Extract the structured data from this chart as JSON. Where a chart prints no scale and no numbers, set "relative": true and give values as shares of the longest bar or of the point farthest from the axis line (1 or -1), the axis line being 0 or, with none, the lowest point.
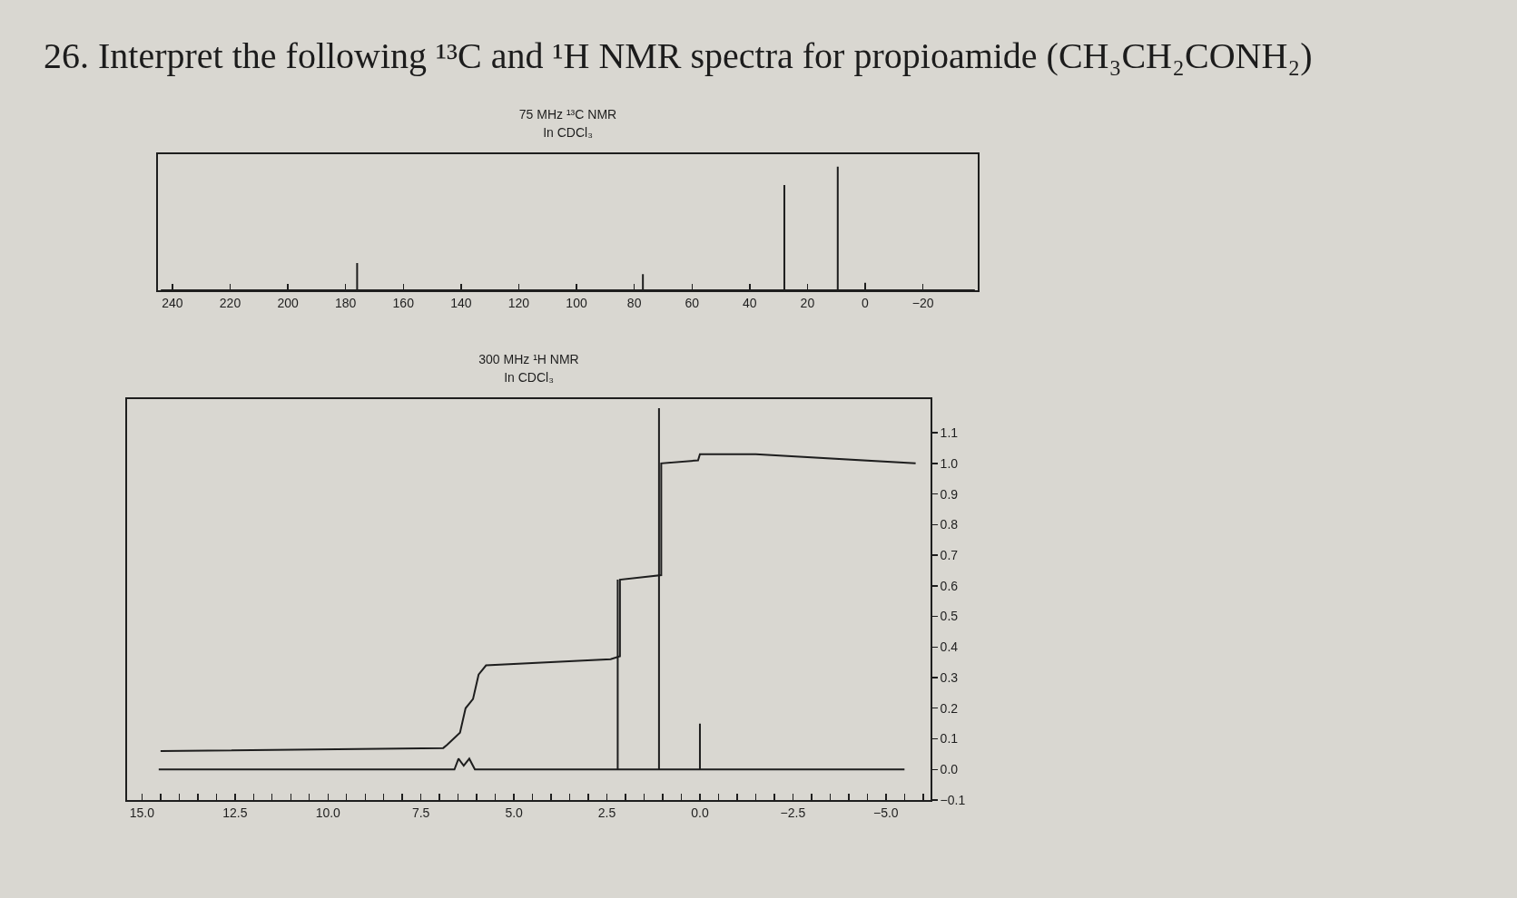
{
  "chart_data": [
    {
      "type": "other",
      "title": "26. Interpret the following ¹³C and ¹H NMR spectra for propioamide (CH₃CH₂CONH₂)"
    },
    {
      "type": "line",
      "title": "75 MHz ¹³C NMR",
      "subtitle": "In CDCl₃",
      "relative": true,
      "xlim": [
        245,
        -39
      ],
      "xticks": [
        240,
        220,
        200,
        180,
        160,
        140,
        120,
        100,
        80,
        60,
        40,
        20,
        0,
        {
          "value": -20,
          "label": "−20"
        }
      ],
      "series": [
        {
          "color": "#1e1e1e",
          "x": [
            244,
            176,
            176,
            176,
            77,
            77,
            77,
            28,
            28,
            28,
            9.5,
            9.5,
            9.5,
            0,
            0,
            0,
            -38
          ],
          "values": [
            0,
            0,
            0.22,
            0,
            0,
            0.13,
            0,
            0,
            0.85,
            0,
            0,
            1,
            0,
            0,
            0.06,
            0,
            0
          ]
        }
      ]
    },
    {
      "type": "line",
      "title": "300 MHz ¹H NMR",
      "subtitle": "In CDCl₃",
      "xlim": [
        15.4,
        -6.2
      ],
      "ylim": [
        -0.1,
        1.21
      ],
      "xticks": [
        {
          "value": 15,
          "label": "15.0"
        },
        {
          "value": 14.5,
          "label": null
        },
        {
          "value": 14,
          "label": null
        },
        {
          "value": 13.5,
          "label": null
        },
        {
          "value": 13,
          "label": null
        },
        {
          "value": 12.5,
          "label": "12.5"
        },
        {
          "value": 12,
          "label": null
        },
        {
          "value": 11.5,
          "label": null
        },
        {
          "value": 11,
          "label": null
        },
        {
          "value": 10.5,
          "label": null
        },
        {
          "value": 10,
          "label": "10.0"
        },
        {
          "value": 9.5,
          "label": null
        },
        {
          "value": 9,
          "label": null
        },
        {
          "value": 8.5,
          "label": null
        },
        {
          "value": 8,
          "label": null
        },
        {
          "value": 7.5,
          "label": "7.5"
        },
        {
          "value": 7,
          "label": null
        },
        {
          "value": 6.5,
          "label": null
        },
        {
          "value": 6,
          "label": null
        },
        {
          "value": 5.5,
          "label": null
        },
        {
          "value": 5,
          "label": "5.0"
        },
        {
          "value": 4.5,
          "label": null
        },
        {
          "value": 4,
          "label": null
        },
        {
          "value": 3.5,
          "label": null
        },
        {
          "value": 3,
          "label": null
        },
        {
          "value": 2.5,
          "label": "2.5"
        },
        {
          "value": 2,
          "label": null
        },
        {
          "value": 1.5,
          "label": null
        },
        {
          "value": 1,
          "label": null
        },
        {
          "value": 0.5,
          "label": null
        },
        {
          "value": 0,
          "label": "0.0"
        },
        {
          "value": -0.5,
          "label": null
        },
        {
          "value": -1,
          "label": null
        },
        {
          "value": -1.5,
          "label": null
        },
        {
          "value": -2,
          "label": null
        },
        {
          "value": -2.5,
          "label": "−2.5"
        },
        {
          "value": -3,
          "label": null
        },
        {
          "value": -3.5,
          "label": null
        },
        {
          "value": -4,
          "label": null
        },
        {
          "value": -4.5,
          "label": null
        },
        {
          "value": -5,
          "label": "−5.0"
        },
        {
          "value": -5.5,
          "label": null
        },
        {
          "value": -6,
          "label": null
        }
      ],
      "yticks": [
        {
          "value": -0.1,
          "label": "−0.1"
        },
        {
          "value": 0,
          "label": "0.0"
        },
        {
          "value": 0.1,
          "label": "0.1"
        },
        {
          "value": 0.2,
          "label": "0.2"
        },
        {
          "value": 0.3,
          "label": "0.3"
        },
        {
          "value": 0.4,
          "label": "0.4"
        },
        {
          "value": 0.5,
          "label": "0.5"
        },
        {
          "value": 0.6,
          "label": "0.6"
        },
        {
          "value": 0.7,
          "label": "0.7"
        },
        {
          "value": 0.8,
          "label": "0.8"
        },
        {
          "value": 0.9,
          "label": "0.9"
        },
        {
          "value": 1,
          "label": "1.0"
        },
        {
          "value": 1.1,
          "label": "1.1"
        }
      ],
      "series": [
        {
          "color": "#1e1e1e",
          "x": [
            14.55,
            6.6,
            6.49,
            6.35,
            6.2,
            6.05,
            2.21,
            2.21,
            2.21,
            1.1,
            1.1,
            1.1,
            0,
            0,
            0,
            -5.5
          ],
          "values": [
            0,
            0,
            0.035,
            0.012,
            0.035,
            0,
            0,
            0.62,
            0,
            0,
            1.18,
            0,
            0,
            0.15,
            0,
            0
          ]
        },
        {
          "color": "#1e1e1e",
          "x": [
            14.5,
            6.9,
            6.8,
            6.45,
            6.3,
            6.1,
            5.95,
            5.75,
            2.4,
            2.15,
            2.15,
            1.04,
            1.04,
            0.05,
            0,
            -1.5,
            -5.8
          ],
          "values": [
            0.06,
            0.07,
            0.08,
            0.12,
            0.2,
            0.23,
            0.31,
            0.34,
            0.36,
            0.37,
            0.62,
            0.635,
            1,
            1.01,
            1.03,
            1.03,
            1
          ]
        }
      ]
    }
  ]
}
